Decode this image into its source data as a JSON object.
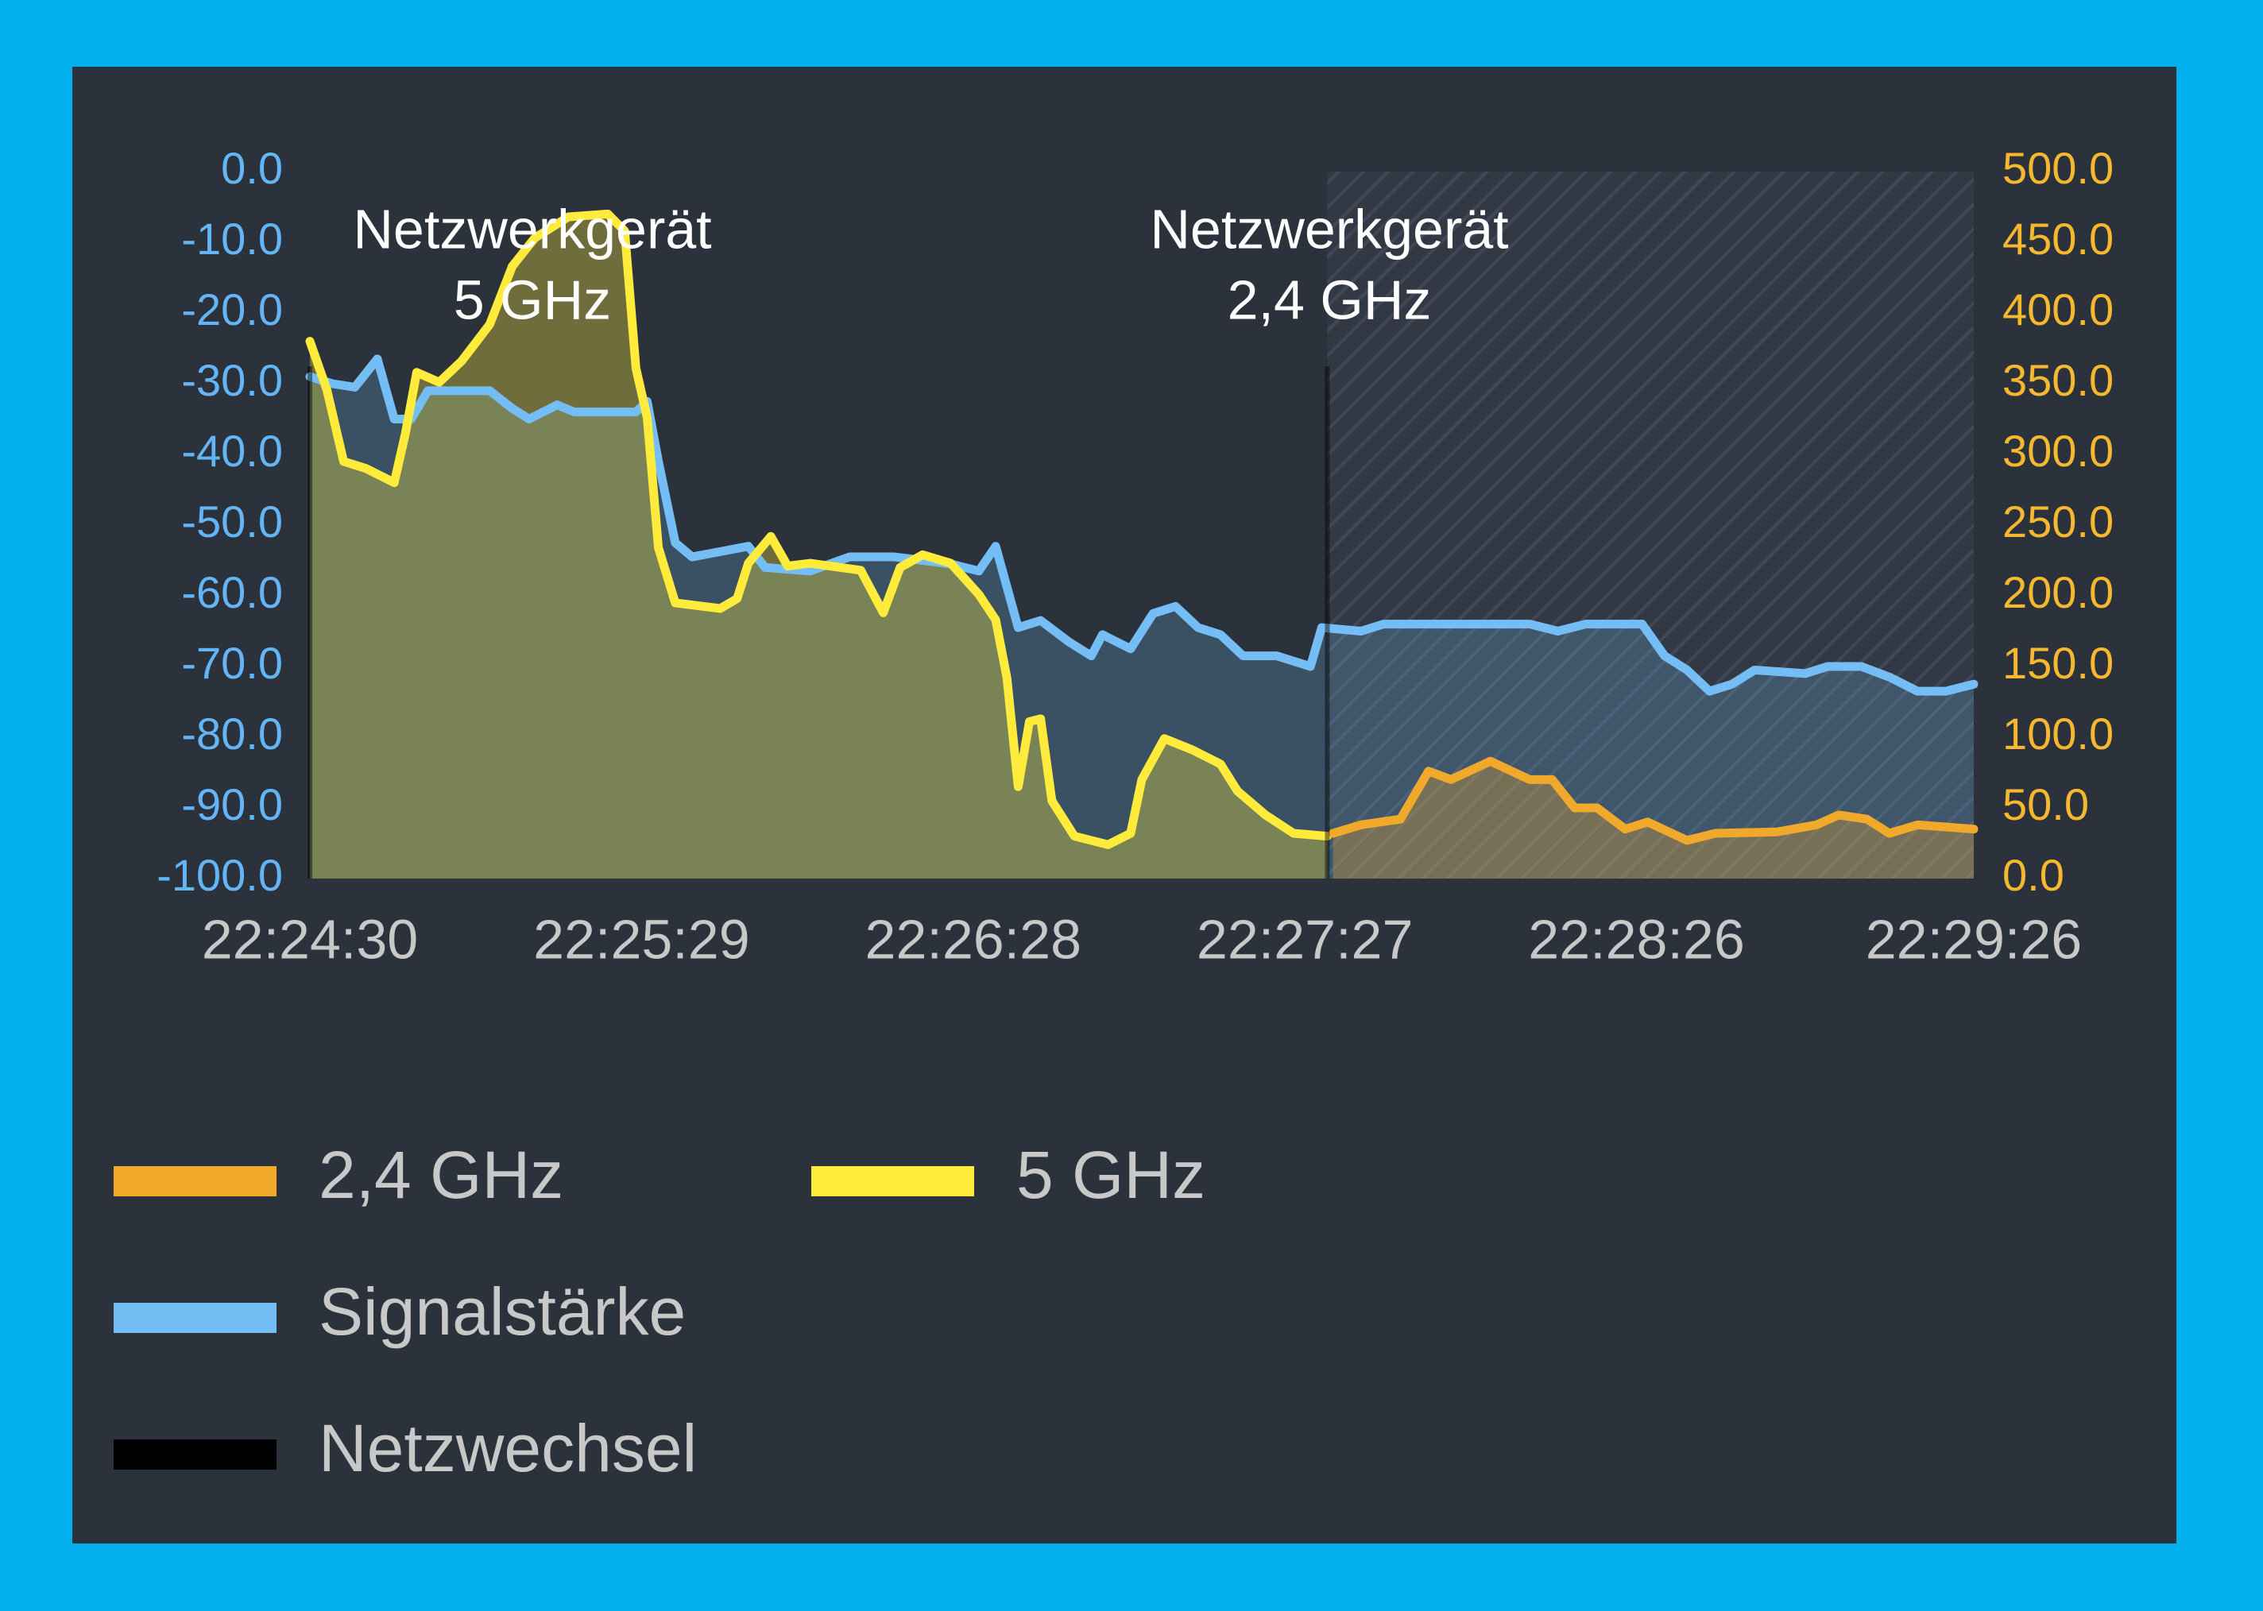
{
  "chart_data": {
    "type": "line",
    "xlim": [
      "22:24:30",
      "22:29:26"
    ],
    "xticks": [
      "22:24:30",
      "22:25:29",
      "22:26:28",
      "22:27:27",
      "22:28:26",
      "22:29:26"
    ],
    "ylim": [
      -100,
      0
    ],
    "yticks": [
      {
        "value": 0,
        "label": "0.0"
      },
      {
        "value": -10,
        "label": "-10.0"
      },
      {
        "value": -20,
        "label": "-20.0"
      },
      {
        "value": -30,
        "label": "-30.0"
      },
      {
        "value": -40,
        "label": "-40.0"
      },
      {
        "value": -50,
        "label": "-50.0"
      },
      {
        "value": -60,
        "label": "-60.0"
      },
      {
        "value": -70,
        "label": "-70.0"
      },
      {
        "value": -80,
        "label": "-80.0"
      },
      {
        "value": -90,
        "label": "-90.0"
      },
      {
        "value": -100,
        "label": "-100.0"
      }
    ],
    "y2lim": [
      0,
      500
    ],
    "y2ticks": [
      {
        "value": 500,
        "label": "500.0"
      },
      {
        "value": 450,
        "label": "450.0"
      },
      {
        "value": 400,
        "label": "400.0"
      },
      {
        "value": 350,
        "label": "350.0"
      },
      {
        "value": 300,
        "label": "300.0"
      },
      {
        "value": 250,
        "label": "250.0"
      },
      {
        "value": 200,
        "label": "200.0"
      },
      {
        "value": 150,
        "label": "150.0"
      },
      {
        "value": 100,
        "label": "100.0"
      },
      {
        "value": 50,
        "label": "50.0"
      },
      {
        "value": 0,
        "label": "0.0"
      }
    ],
    "annotations": [
      [
        "Netzwerkgerät",
        "5 GHz"
      ],
      [
        "Netzwerkgerät",
        "2,4 GHz"
      ]
    ],
    "series": [
      {
        "name": "2,4 GHz",
        "color": "#f0a92a",
        "axis": "y2",
        "x": [
          "22:27:32",
          "22:27:37",
          "22:27:44",
          "22:27:49",
          "22:27:53",
          "22:28:00",
          "22:28:07",
          "22:28:11",
          "22:28:15",
          "22:28:19",
          "22:28:24",
          "22:28:28",
          "22:28:35",
          "22:28:40",
          "22:28:51",
          "22:28:58",
          "22:29:02",
          "22:29:07",
          "22:29:11",
          "22:29:16",
          "22:29:26"
        ],
        "values": [
          32,
          38,
          42,
          76,
          70,
          83,
          70,
          70,
          50,
          50,
          35,
          40,
          27,
          32,
          33,
          38,
          45,
          42,
          32,
          38,
          35
        ]
      },
      {
        "name": "5 GHz",
        "color": "#ffeb3b",
        "axis": "y2",
        "x": [
          "22:24:30",
          "22:24:33",
          "22:24:36",
          "22:24:40",
          "22:24:45",
          "22:24:47",
          "22:24:49",
          "22:24:53",
          "22:24:57",
          "22:25:02",
          "22:25:06",
          "22:25:10",
          "22:25:16",
          "22:25:23",
          "22:25:26",
          "22:25:28",
          "22:25:30",
          "22:25:32",
          "22:25:35",
          "22:25:43",
          "22:25:46",
          "22:25:48",
          "22:25:52",
          "22:25:55",
          "22:25:59",
          "22:26:08",
          "22:26:10",
          "22:26:12",
          "22:26:15",
          "22:26:19",
          "22:26:24",
          "22:26:29",
          "22:26:32",
          "22:26:34",
          "22:26:36",
          "22:26:38",
          "22:26:40",
          "22:26:42",
          "22:26:46",
          "22:26:52",
          "22:26:56",
          "22:26:58",
          "22:27:02",
          "22:27:07",
          "22:27:12",
          "22:27:15",
          "22:27:20",
          "22:27:25",
          "22:27:31"
        ],
        "values": [
          380,
          346,
          295,
          290,
          280,
          315,
          358,
          351,
          366,
          392,
          433,
          453,
          468,
          470,
          458,
          361,
          326,
          234,
          195,
          191,
          198,
          223,
          242,
          221,
          223,
          218,
          203,
          188,
          220,
          229,
          223,
          201,
          183,
          142,
          65,
          111,
          113,
          55,
          30,
          24,
          32,
          70,
          99,
          91,
          81,
          62,
          45,
          32,
          30
        ]
      },
      {
        "name": "Signalstärke",
        "color": "#74bdf5",
        "x": [
          "22:24:30",
          "22:24:34",
          "22:24:38",
          "22:24:42",
          "22:24:45",
          "22:24:48",
          "22:24:51",
          "22:25:02",
          "22:25:06",
          "22:25:09",
          "22:25:14",
          "22:25:17",
          "22:25:28",
          "22:25:30",
          "22:25:32",
          "22:25:35",
          "22:25:38",
          "22:25:48",
          "22:25:51",
          "22:25:59",
          "22:26:06",
          "22:26:14",
          "22:26:24",
          "22:26:29",
          "22:26:32",
          "22:26:36",
          "22:26:40",
          "22:26:45",
          "22:26:49",
          "22:26:51",
          "22:26:56",
          "22:27:00",
          "22:27:04",
          "22:27:08",
          "22:27:12",
          "22:27:16",
          "22:27:22",
          "22:27:28",
          "22:27:30",
          "22:27:37",
          "22:27:41",
          "22:28:07",
          "22:28:12",
          "22:28:17",
          "22:28:27",
          "22:28:31",
          "22:28:35",
          "22:28:39",
          "22:28:43",
          "22:28:47",
          "22:28:56",
          "22:29:00",
          "22:29:06",
          "22:29:11",
          "22:29:16",
          "22:29:21",
          "22:29:26"
        ],
        "values": [
          -29,
          -30,
          -30.5,
          -26.5,
          -35,
          -35,
          -31,
          -31,
          -33.5,
          -35,
          -33,
          -34,
          -34,
          -32.5,
          -41,
          -52.5,
          -54.5,
          -53,
          -56,
          -56.5,
          -54.5,
          -54.5,
          -55.5,
          -56.5,
          -53,
          -64.5,
          -63.5,
          -66.5,
          -68.5,
          -65.5,
          -67.5,
          -62.5,
          -61.5,
          -64.5,
          -65.5,
          -68.5,
          -68.5,
          -70,
          -64.5,
          -65,
          -64,
          -64,
          -65,
          -64,
          -64,
          -68.5,
          -70.5,
          -73.5,
          -72.5,
          -70.5,
          -71,
          -70,
          -70,
          -71.5,
          -73.5,
          -73.5,
          -72.5
        ]
      },
      {
        "name": "Netzwechsel",
        "color": "#000000",
        "x": [
          "22:24:30",
          "22:27:31"
        ]
      }
    ]
  }
}
